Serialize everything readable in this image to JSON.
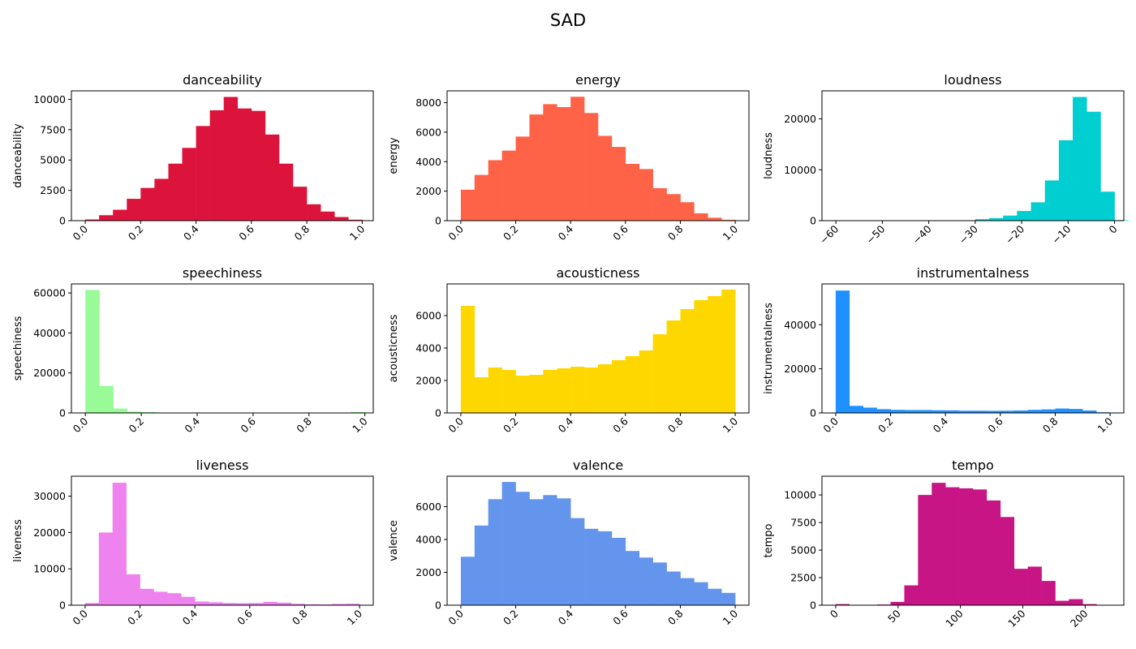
{
  "figure": {
    "suptitle": "SAD"
  },
  "chart_data": [
    {
      "type": "bar",
      "title": "danceability",
      "xlabel": "",
      "ylabel": "danceability",
      "color": "#dc143c",
      "bins": {
        "start": 0.0,
        "width": 0.05
      },
      "values": [
        100,
        450,
        900,
        1800,
        2700,
        3450,
        4700,
        6000,
        7800,
        9100,
        10200,
        9250,
        9050,
        7100,
        4700,
        2800,
        1350,
        750,
        300,
        80
      ],
      "xlim": [
        -0.05,
        1.04
      ],
      "ylim": [
        0,
        10700
      ],
      "xticks": [
        0.0,
        0.2,
        0.4,
        0.6,
        0.8,
        1.0
      ],
      "xtick_labels": [
        "0.0",
        "0.2",
        "0.4",
        "0.6",
        "0.8",
        "1.0"
      ],
      "yticks": [
        0,
        2500,
        5000,
        7500,
        10000
      ],
      "ytick_labels": [
        "0",
        "2500",
        "5000",
        "7500",
        "10000"
      ]
    },
    {
      "type": "bar",
      "title": "energy",
      "xlabel": "",
      "ylabel": "energy",
      "color": "#ff6347",
      "bins": {
        "start": 0.0,
        "width": 0.05
      },
      "values": [
        2100,
        3100,
        4100,
        4750,
        5700,
        7200,
        7900,
        7700,
        8400,
        7300,
        5750,
        5000,
        3850,
        3500,
        2200,
        1800,
        1250,
        500,
        200,
        60
      ],
      "xlim": [
        -0.05,
        1.05
      ],
      "ylim": [
        0,
        8800
      ],
      "xticks": [
        0.0,
        0.2,
        0.4,
        0.6,
        0.8,
        1.0
      ],
      "xtick_labels": [
        "0.0",
        "0.2",
        "0.4",
        "0.6",
        "0.8",
        "1.0"
      ],
      "yticks": [
        0,
        2000,
        4000,
        6000,
        8000
      ],
      "ytick_labels": [
        "0",
        "2000",
        "4000",
        "6000",
        "8000"
      ]
    },
    {
      "type": "bar",
      "title": "loudness",
      "xlabel": "",
      "ylabel": "loudness",
      "color": "#00ced1",
      "bins": {
        "start": -60.0,
        "width": 3.0
      },
      "values": [
        20,
        10,
        10,
        10,
        10,
        10,
        10,
        10,
        20,
        50,
        300,
        500,
        1000,
        1900,
        3600,
        7900,
        15800,
        24300,
        21400,
        5700,
        100
      ],
      "xlim": [
        -63.0,
        2.0
      ],
      "ylim": [
        0,
        25500
      ],
      "xticks": [
        -60,
        -50,
        -40,
        -30,
        -20,
        -10,
        0
      ],
      "xtick_labels": [
        "−60",
        "−50",
        "−40",
        "−30",
        "−20",
        "−10",
        "0"
      ],
      "yticks": [
        0,
        10000,
        20000
      ],
      "ytick_labels": [
        "0",
        "10000",
        "20000"
      ]
    },
    {
      "type": "bar",
      "title": "speechiness",
      "xlabel": "",
      "ylabel": "speechiness",
      "color": "#98fb98",
      "bins": {
        "start": 0.0,
        "width": 0.05
      },
      "values": [
        61500,
        13500,
        2200,
        700,
        400,
        200,
        150,
        100,
        80,
        60,
        50,
        40,
        40,
        30,
        30,
        30,
        30,
        40,
        100,
        500
      ],
      "xlim": [
        -0.05,
        1.03
      ],
      "ylim": [
        0,
        64500
      ],
      "xticks": [
        0.0,
        0.2,
        0.4,
        0.6,
        0.8,
        1.0
      ],
      "xtick_labels": [
        "0.0",
        "0.2",
        "0.4",
        "0.6",
        "0.8",
        "1.0"
      ],
      "yticks": [
        0,
        20000,
        40000,
        60000
      ],
      "ytick_labels": [
        "0",
        "20000",
        "40000",
        "60000"
      ]
    },
    {
      "type": "bar",
      "title": "acousticness",
      "xlabel": "",
      "ylabel": "acousticness",
      "color": "#ffd700",
      "bins": {
        "start": 0.0,
        "width": 0.05
      },
      "values": [
        6600,
        2200,
        2800,
        2650,
        2300,
        2350,
        2650,
        2750,
        2850,
        2800,
        3000,
        3250,
        3500,
        3850,
        4850,
        5700,
        6400,
        6950,
        7200,
        7600
      ],
      "xlim": [
        -0.05,
        1.05
      ],
      "ylim": [
        0,
        7950
      ],
      "xticks": [
        0.0,
        0.2,
        0.4,
        0.6,
        0.8,
        1.0
      ],
      "xtick_labels": [
        "0.0",
        "0.2",
        "0.4",
        "0.6",
        "0.8",
        "1.0"
      ],
      "yticks": [
        0,
        2000,
        4000,
        6000
      ],
      "ytick_labels": [
        "0",
        "2000",
        "4000",
        "6000"
      ]
    },
    {
      "type": "bar",
      "title": "instrumentalness",
      "xlabel": "",
      "ylabel": "instrumentalness",
      "color": "#1e90ff",
      "bins": {
        "start": 0.0,
        "width": 0.05
      },
      "values": [
        55500,
        3200,
        2400,
        1700,
        1400,
        1300,
        1300,
        1200,
        1150,
        1000,
        1000,
        950,
        1000,
        1100,
        1400,
        1600,
        2000,
        1800,
        1100,
        300
      ],
      "xlim": [
        -0.05,
        1.05
      ],
      "ylim": [
        0,
        58500
      ],
      "xticks": [
        0.0,
        0.2,
        0.4,
        0.6,
        0.8,
        1.0
      ],
      "xtick_labels": [
        "0.0",
        "0.2",
        "0.4",
        "0.6",
        "0.8",
        "1.0"
      ],
      "yticks": [
        0,
        20000,
        40000
      ],
      "ytick_labels": [
        "0",
        "20000",
        "40000"
      ]
    },
    {
      "type": "bar",
      "title": "liveness",
      "xlabel": "",
      "ylabel": "liveness",
      "color": "#ee82ee",
      "bins": {
        "start": 0.0,
        "width": 0.05
      },
      "values": [
        600,
        20000,
        33700,
        8500,
        4500,
        3700,
        3300,
        2300,
        1000,
        800,
        600,
        550,
        600,
        900,
        700,
        400,
        250,
        200,
        350,
        400
      ],
      "xlim": [
        -0.05,
        1.05
      ],
      "ylim": [
        0,
        35500
      ],
      "xticks": [
        0.0,
        0.2,
        0.4,
        0.6,
        0.8,
        1.0
      ],
      "xtick_labels": [
        "0.0",
        "0.2",
        "0.4",
        "0.6",
        "0.8",
        "1.0"
      ],
      "yticks": [
        0,
        10000,
        20000,
        30000
      ],
      "ytick_labels": [
        "0",
        "10000",
        "20000",
        "30000"
      ]
    },
    {
      "type": "bar",
      "title": "valence",
      "xlabel": "",
      "ylabel": "valence",
      "color": "#6495ed",
      "bins": {
        "start": 0.0,
        "width": 0.05
      },
      "values": [
        2950,
        4850,
        6450,
        7500,
        6900,
        6450,
        6700,
        6500,
        5300,
        4650,
        4500,
        4100,
        3300,
        2900,
        2600,
        2050,
        1650,
        1400,
        1000,
        750
      ],
      "xlim": [
        -0.05,
        1.05
      ],
      "ylim": [
        0,
        7850
      ],
      "xticks": [
        0.0,
        0.2,
        0.4,
        0.6,
        0.8,
        1.0
      ],
      "xtick_labels": [
        "0.0",
        "0.2",
        "0.4",
        "0.6",
        "0.8",
        "1.0"
      ],
      "yticks": [
        0,
        2000,
        4000,
        6000
      ],
      "ytick_labels": [
        "0",
        "2000",
        "4000",
        "6000"
      ]
    },
    {
      "type": "bar",
      "title": "tempo",
      "xlabel": "",
      "ylabel": "tempo",
      "color": "#c71585",
      "bins": {
        "start": 0.0,
        "width": 11.0
      },
      "values": [
        100,
        0,
        0,
        60,
        300,
        1800,
        10000,
        11100,
        10700,
        10600,
        10500,
        9500,
        8000,
        3300,
        3500,
        2200,
        400,
        550,
        100,
        0
      ],
      "xlim": [
        -11.0,
        231.0
      ],
      "ylim": [
        0,
        11700
      ],
      "xticks": [
        0,
        50,
        100,
        150,
        200
      ],
      "xtick_labels": [
        "0",
        "50",
        "100",
        "150",
        "200"
      ],
      "yticks": [
        0,
        2500,
        5000,
        7500,
        10000
      ],
      "ytick_labels": [
        "0",
        "2500",
        "5000",
        "7500",
        "10000"
      ]
    }
  ]
}
